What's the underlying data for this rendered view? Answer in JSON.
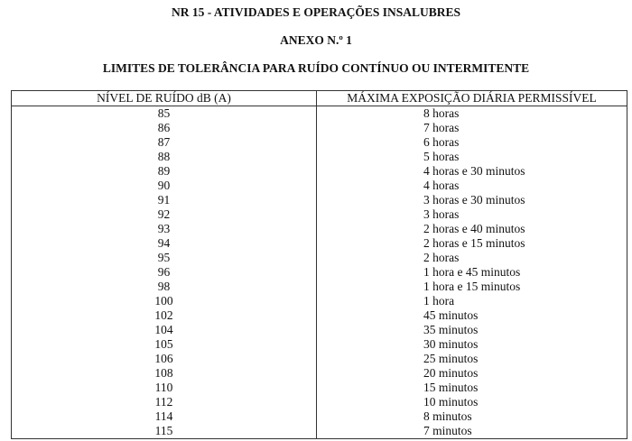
{
  "titles": {
    "t1": "NR 15 - ATIVIDADES E OPERAÇÕES INSALUBRES",
    "t2": "ANEXO N.º 1",
    "t3": "LIMITES DE TOLERÂNCIA PARA RUÍDO CONTÍNUO OU INTERMITENTE"
  },
  "table": {
    "headers": [
      "NÍVEL DE RUÍDO dB (A)",
      "MÁXIMA EXPOSIÇÃO DIÁRIA PERMISSÍVEL"
    ],
    "rows": [
      [
        "85",
        "8 horas"
      ],
      [
        "86",
        "7 horas"
      ],
      [
        "87",
        "6 horas"
      ],
      [
        "88",
        "5 horas"
      ],
      [
        "89",
        "4 horas e 30 minutos"
      ],
      [
        "90",
        "4 horas"
      ],
      [
        "91",
        "3 horas e 30 minutos"
      ],
      [
        "92",
        "3 horas"
      ],
      [
        "93",
        "2 horas e 40 minutos"
      ],
      [
        "94",
        "2 horas e 15 minutos"
      ],
      [
        "95",
        "2 horas"
      ],
      [
        "96",
        "1 hora e 45 minutos"
      ],
      [
        "98",
        "1 hora e 15 minutos"
      ],
      [
        "100",
        "1 hora"
      ],
      [
        "102",
        "45 minutos"
      ],
      [
        "104",
        "35 minutos"
      ],
      [
        "105",
        "30 minutos"
      ],
      [
        "106",
        "25 minutos"
      ],
      [
        "108",
        "20 minutos"
      ],
      [
        "110",
        "15 minutos"
      ],
      [
        "112",
        "10 minutos"
      ],
      [
        "114",
        "8 minutos"
      ],
      [
        "115",
        "7 minutos"
      ]
    ]
  }
}
